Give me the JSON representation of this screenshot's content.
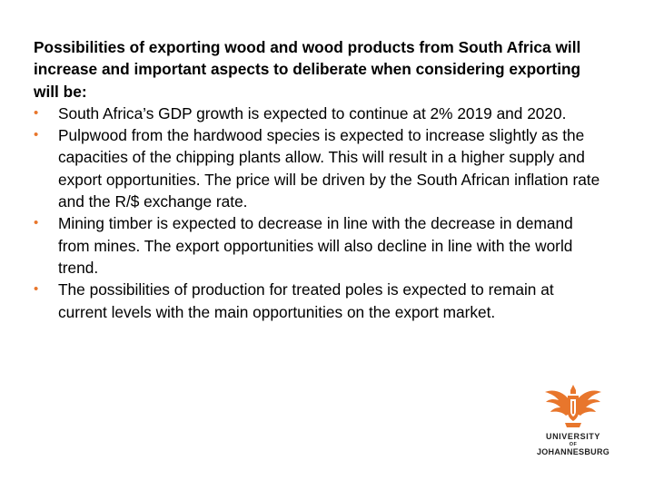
{
  "slide": {
    "heading": "Possibilities of exporting wood and wood products from South Africa will increase and important aspects to deliberate when considering exporting will be:",
    "bullet_glyph": "•",
    "bullets": [
      "South Africa’s GDP growth is expected to continue at 2% 2019 and 2020.",
      "Pulpwood from the hardwood species is expected to increase slightly as the capacities of the chipping plants allow. This will result in a higher supply and export opportunities. The price will be driven by the South African inflation rate and the R/$ exchange rate.",
      "Mining timber is expected to decrease in line with the decrease in demand from mines. The export opportunities will also decline in line with the world trend.",
      "The possibilities of production for treated poles is expected to remain at current levels with the main opportunities on the export market."
    ]
  },
  "logo": {
    "icon": "university-crest-icon",
    "line1": "UNIVERSITY",
    "line2": "OF",
    "line3": "JOHANNESBURG",
    "accent_color": "#e8762c"
  }
}
